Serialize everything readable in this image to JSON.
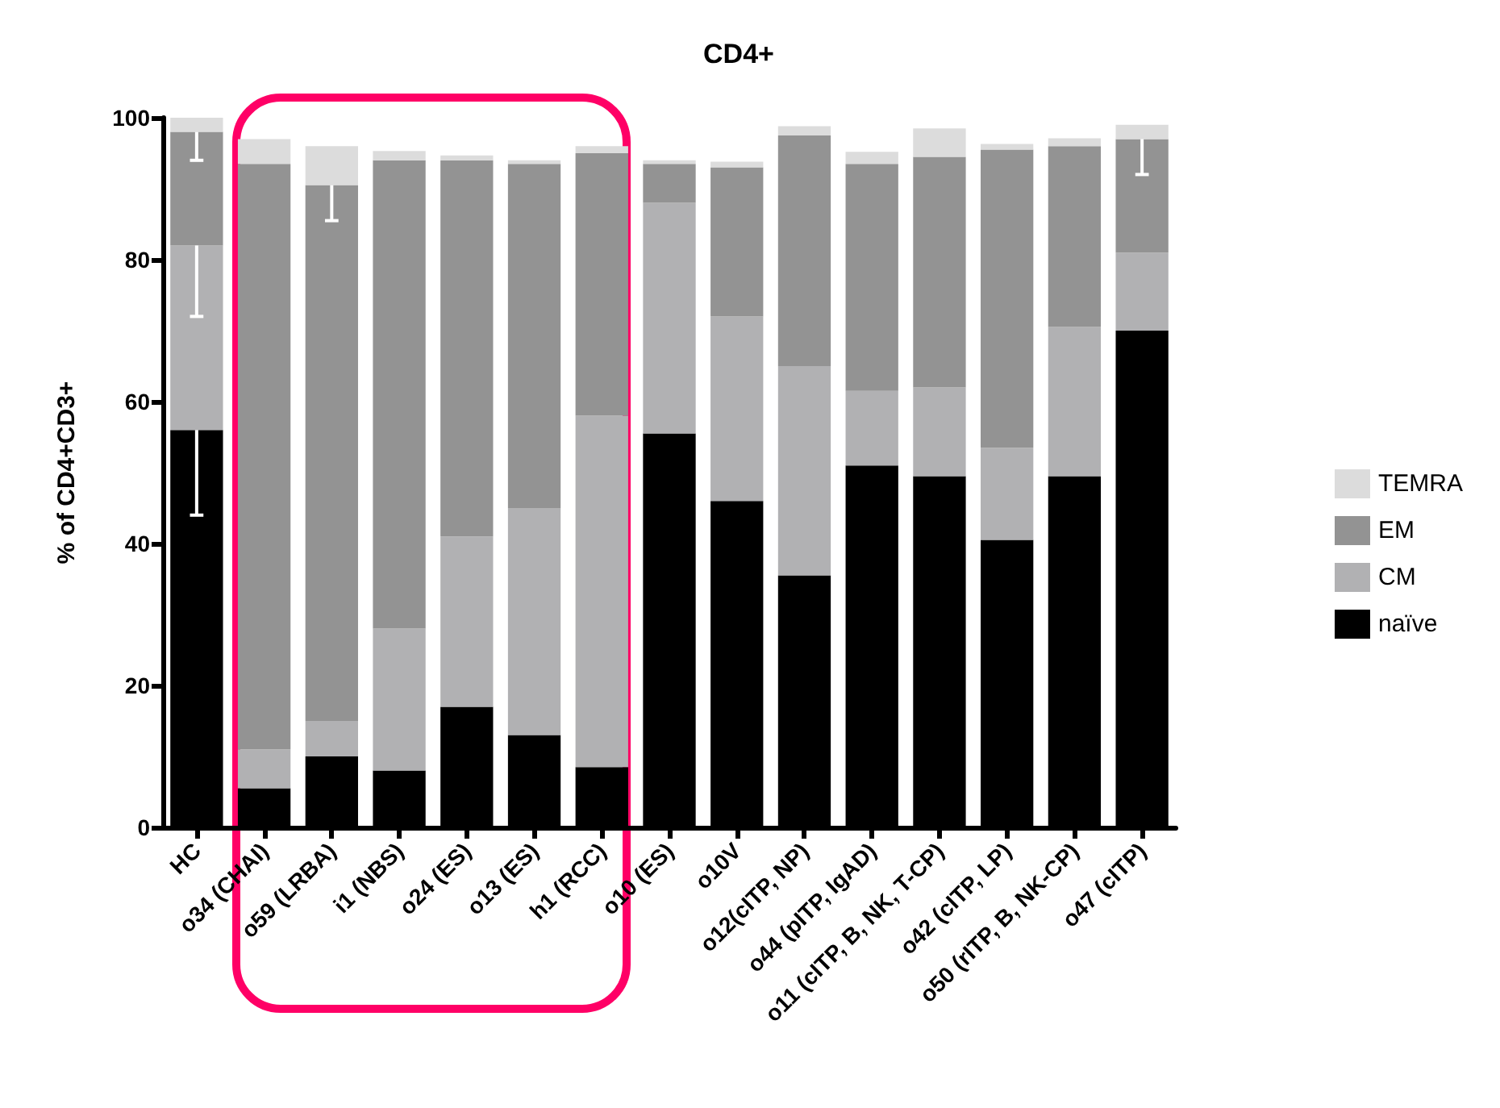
{
  "chart_data": {
    "type": "bar",
    "title": "CD4+",
    "ylabel": "% of CD4+CD3+",
    "stacked": true,
    "legend": "right",
    "grid": false,
    "categories": [
      "HC",
      "o34 (CHAI)",
      "o59 (LRBA)",
      "i1 (NBS)",
      "o24 (ES)",
      "o13 (ES)",
      "h1 (RCC)",
      "o10 (ES)",
      "o10V",
      "o12(cITP, NP)",
      "o44 (pITP, IgAD)",
      "o11 (cITP, B, NK, T-CP)",
      "o42 (cITP, LP)",
      "o50 (rITP, B, NK-CP)",
      "o47 (cITP)"
    ],
    "ylim": [
      0,
      100
    ],
    "yticks": [
      0,
      20,
      40,
      60,
      80,
      100
    ],
    "series": [
      {
        "name": "naïve",
        "color": "#000000",
        "values": [
          56,
          5.5,
          10,
          8,
          17,
          13,
          8.5,
          55.5,
          46,
          35.5,
          51,
          49.5,
          40.5,
          49.5,
          70
        ],
        "errors": [
          [
            44,
            56
          ],
          null,
          null,
          null,
          null,
          null,
          null,
          null,
          null,
          null,
          null,
          null,
          null,
          null,
          null
        ]
      },
      {
        "name": "CM",
        "color": "#b1b1b3",
        "values": [
          26,
          5.5,
          5,
          20,
          24,
          32,
          49.5,
          32.5,
          26,
          29.5,
          10.5,
          12.5,
          13,
          21,
          11
        ],
        "errors": [
          [
            72,
            82
          ],
          null,
          null,
          null,
          null,
          null,
          null,
          null,
          null,
          null,
          null,
          null,
          null,
          null,
          null
        ]
      },
      {
        "name": "EM",
        "color": "#939393",
        "values": [
          16,
          82.5,
          75.5,
          66,
          53,
          48.5,
          37,
          5.5,
          21,
          32.5,
          32,
          32.5,
          42,
          25.5,
          16
        ],
        "errors": [
          [
            94,
            98
          ],
          null,
          [
            85.5,
            90.5
          ],
          null,
          null,
          null,
          null,
          null,
          null,
          null,
          null,
          null,
          null,
          null,
          [
            92,
            97
          ]
        ]
      },
      {
        "name": "TEMRA",
        "color": "#dcdcdc",
        "values": [
          2,
          3.5,
          5.5,
          1.3,
          0.7,
          0.5,
          1,
          0.5,
          0.8,
          1.3,
          1.7,
          4,
          0.8,
          1.1,
          2
        ]
      }
    ]
  }
}
